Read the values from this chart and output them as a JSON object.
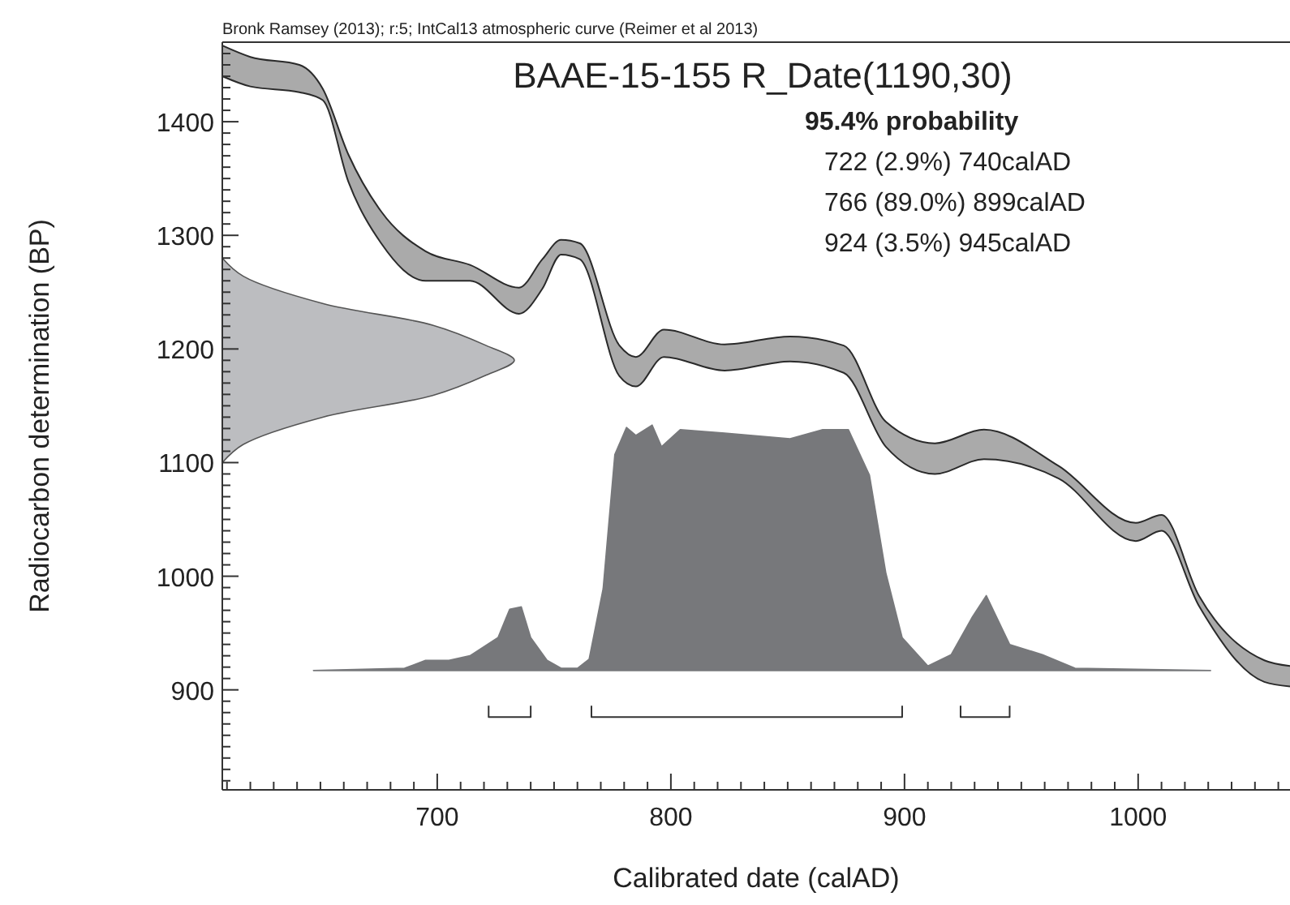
{
  "chart_data": {
    "type": "area",
    "title": "BAAE-15-155 R_Date(1190,30)",
    "subtitle": "Bronk Ramsey (2013); r:5; IntCal13 atmospheric curve (Reimer et al 2013)",
    "xlabel": "Calibrated date (calAD)",
    "ylabel": "Radiocarbon determination (BP)",
    "annotations": [
      "95.4% probability",
      "722 (2.9%) 740calAD",
      "766 (89.0%) 899calAD",
      "924 (3.5%) 945calAD"
    ],
    "xlim": [
      608,
      1065
    ],
    "ylim": [
      812,
      1470
    ],
    "xticks": [
      {
        "value": 610,
        "label": null
      },
      {
        "value": 620,
        "label": null
      },
      {
        "value": 630,
        "label": null
      },
      {
        "value": 640,
        "label": null
      },
      {
        "value": 650,
        "label": null
      },
      {
        "value": 660,
        "label": null
      },
      {
        "value": 670,
        "label": null
      },
      {
        "value": 680,
        "label": null
      },
      {
        "value": 690,
        "label": null
      },
      700,
      {
        "value": 710,
        "label": null
      },
      {
        "value": 720,
        "label": null
      },
      {
        "value": 730,
        "label": null
      },
      {
        "value": 740,
        "label": null
      },
      {
        "value": 750,
        "label": null
      },
      {
        "value": 760,
        "label": null
      },
      {
        "value": 770,
        "label": null
      },
      {
        "value": 780,
        "label": null
      },
      {
        "value": 790,
        "label": null
      },
      800,
      {
        "value": 810,
        "label": null
      },
      {
        "value": 820,
        "label": null
      },
      {
        "value": 830,
        "label": null
      },
      {
        "value": 840,
        "label": null
      },
      {
        "value": 850,
        "label": null
      },
      {
        "value": 860,
        "label": null
      },
      {
        "value": 870,
        "label": null
      },
      {
        "value": 880,
        "label": null
      },
      {
        "value": 890,
        "label": null
      },
      900,
      {
        "value": 910,
        "label": null
      },
      {
        "value": 920,
        "label": null
      },
      {
        "value": 930,
        "label": null
      },
      {
        "value": 940,
        "label": null
      },
      {
        "value": 950,
        "label": null
      },
      {
        "value": 960,
        "label": null
      },
      {
        "value": 970,
        "label": null
      },
      {
        "value": 980,
        "label": null
      },
      {
        "value": 990,
        "label": null
      },
      1000,
      {
        "value": 1010,
        "label": null
      },
      {
        "value": 1020,
        "label": null
      },
      {
        "value": 1030,
        "label": null
      },
      {
        "value": 1040,
        "label": null
      },
      {
        "value": 1050,
        "label": null
      },
      {
        "value": 1060,
        "label": null
      }
    ],
    "yticks": [
      {
        "value": 820,
        "label": null
      },
      {
        "value": 830,
        "label": null
      },
      {
        "value": 840,
        "label": null
      },
      {
        "value": 850,
        "label": null
      },
      {
        "value": 860,
        "label": null
      },
      {
        "value": 870,
        "label": null
      },
      {
        "value": 880,
        "label": null
      },
      {
        "value": 890,
        "label": null
      },
      900,
      {
        "value": 910,
        "label": null
      },
      {
        "value": 920,
        "label": null
      },
      {
        "value": 930,
        "label": null
      },
      {
        "value": 940,
        "label": null
      },
      {
        "value": 950,
        "label": null
      },
      {
        "value": 960,
        "label": null
      },
      {
        "value": 970,
        "label": null
      },
      {
        "value": 980,
        "label": null
      },
      {
        "value": 990,
        "label": null
      },
      1000,
      {
        "value": 1010,
        "label": null
      },
      {
        "value": 1020,
        "label": null
      },
      {
        "value": 1030,
        "label": null
      },
      {
        "value": 1040,
        "label": null
      },
      {
        "value": 1050,
        "label": null
      },
      {
        "value": 1060,
        "label": null
      },
      {
        "value": 1070,
        "label": null
      },
      {
        "value": 1080,
        "label": null
      },
      {
        "value": 1090,
        "label": null
      },
      1100,
      {
        "value": 1110,
        "label": null
      },
      {
        "value": 1120,
        "label": null
      },
      {
        "value": 1130,
        "label": null
      },
      {
        "value": 1140,
        "label": null
      },
      {
        "value": 1150,
        "label": null
      },
      {
        "value": 1160,
        "label": null
      },
      {
        "value": 1170,
        "label": null
      },
      {
        "value": 1180,
        "label": null
      },
      {
        "value": 1190,
        "label": null
      },
      1200,
      {
        "value": 1210,
        "label": null
      },
      {
        "value": 1220,
        "label": null
      },
      {
        "value": 1230,
        "label": null
      },
      {
        "value": 1240,
        "label": null
      },
      {
        "value": 1250,
        "label": null
      },
      {
        "value": 1260,
        "label": null
      },
      {
        "value": 1270,
        "label": null
      },
      {
        "value": 1280,
        "label": null
      },
      {
        "value": 1290,
        "label": null
      },
      1300,
      {
        "value": 1310,
        "label": null
      },
      {
        "value": 1320,
        "label": null
      },
      {
        "value": 1330,
        "label": null
      },
      {
        "value": 1340,
        "label": null
      },
      {
        "value": 1350,
        "label": null
      },
      {
        "value": 1360,
        "label": null
      },
      {
        "value": 1370,
        "label": null
      },
      {
        "value": 1380,
        "label": null
      },
      {
        "value": 1390,
        "label": null
      },
      1400,
      {
        "value": 1410,
        "label": null
      },
      {
        "value": 1420,
        "label": null
      },
      {
        "value": 1430,
        "label": null
      },
      {
        "value": 1440,
        "label": null
      },
      {
        "value": 1450,
        "label": null
      },
      {
        "value": 1460,
        "label": null
      }
    ],
    "series": [
      {
        "type": "line",
        "color": "#2a2a2a",
        "x": [
          608,
          620,
          641,
          651,
          662,
          676,
          695,
          714,
          735,
          745,
          753,
          761,
          778,
          785,
          797,
          823,
          851,
          874,
          892,
          913,
          934,
          966,
          999,
          1010,
          1026,
          1054,
          1065
        ],
        "values": [
          1467,
          1457,
          1450,
          1429,
          1371,
          1321,
          1286,
          1274,
          1254,
          1279,
          1296,
          1293,
          1203,
          1193,
          1217,
          1204,
          1211,
          1203,
          1136,
          1117,
          1129,
          1097,
          1047,
          1054,
          983,
          926,
          921
        ],
        "upper": [
          1467,
          1457,
          1450,
          1429,
          1371,
          1321,
          1286,
          1274,
          1254,
          1279,
          1296,
          1293,
          1203,
          1193,
          1217,
          1204,
          1211,
          1203,
          1136,
          1117,
          1129,
          1097,
          1047,
          1054,
          983,
          926,
          921
        ],
        "lower": [
          1440,
          1431,
          1426,
          1419,
          1347,
          1293,
          1260,
          1260,
          1231,
          1253,
          1283,
          1279,
          1176,
          1167,
          1193,
          1181,
          1189,
          1179,
          1114,
          1090,
          1103,
          1086,
          1031,
          1040,
          974,
          907,
          903
        ]
      },
      {
        "type": "line",
        "color": "#2a2a2a",
        "x": [
          608,
          620,
          641,
          651,
          662,
          676,
          695,
          714,
          735,
          745,
          753,
          761,
          778,
          785,
          797,
          823,
          851,
          874,
          892,
          913,
          934,
          966,
          999,
          1010,
          1026,
          1054,
          1065
        ],
        "values": [
          1440,
          1431,
          1426,
          1419,
          1347,
          1293,
          1260,
          1260,
          1231,
          1253,
          1283,
          1279,
          1176,
          1167,
          1193,
          1181,
          1189,
          1179,
          1114,
          1090,
          1103,
          1086,
          1031,
          1040,
          974,
          907,
          903
        ]
      },
      {
        "color": "#bcbdc0",
        "x": [
          608,
          617,
          651,
          698,
          721,
          733,
          721,
          698,
          651,
          617,
          608
        ],
        "values": [
          1100,
          1116,
          1140,
          1159,
          1177,
          1190,
          1203,
          1221,
          1240,
          1264,
          1280
        ]
      },
      {
        "color": "#77787b",
        "x": [
          647,
          686,
          695,
          705,
          714,
          726,
          731,
          736,
          740,
          747,
          753,
          760,
          765,
          771,
          776,
          781,
          785,
          792,
          796,
          804,
          823,
          851,
          865,
          876,
          885,
          892,
          899,
          910,
          920,
          929,
          935,
          945,
          959,
          973,
          1031
        ],
        "values": [
          917,
          919,
          926,
          926,
          930,
          946,
          971,
          973,
          946,
          926,
          919,
          919,
          927,
          989,
          1107,
          1131,
          1124,
          1133,
          1114,
          1129,
          1126,
          1121,
          1129,
          1129,
          1089,
          1003,
          946,
          921,
          931,
          964,
          983,
          940,
          931,
          919,
          917
        ]
      },
      {
        "type": "line",
        "color": "#333333",
        "x": [
          722,
          722,
          740,
          740,
          null,
          766,
          766,
          899,
          899,
          null,
          924,
          924,
          945,
          945
        ],
        "values": [
          886,
          876,
          876,
          886,
          null,
          886,
          876,
          876,
          886,
          null,
          886,
          876,
          876,
          886
        ]
      }
    ]
  }
}
